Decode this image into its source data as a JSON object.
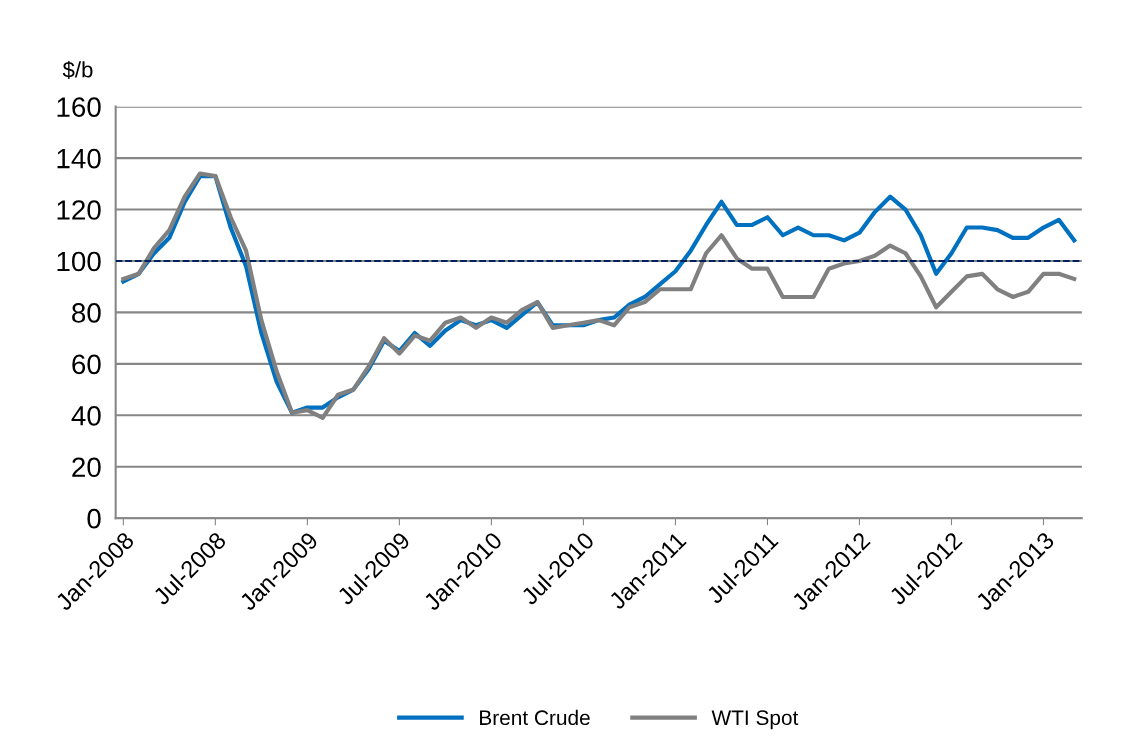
{
  "chart_data": {
    "type": "line",
    "ylabel": "$/b",
    "categories": [
      "Jan-2008",
      null,
      null,
      null,
      null,
      null,
      "Jul-2008",
      null,
      null,
      null,
      null,
      null,
      "Jan-2009",
      null,
      null,
      null,
      null,
      null,
      "Jul-2009",
      null,
      null,
      null,
      null,
      null,
      "Jan-2010",
      null,
      null,
      null,
      null,
      null,
      "Jul-2010",
      null,
      null,
      null,
      null,
      null,
      "Jan-2011",
      null,
      null,
      null,
      null,
      null,
      "Jul-2011",
      null,
      null,
      null,
      null,
      null,
      "Jan-2012",
      null,
      null,
      null,
      null,
      null,
      "Jul-2012",
      null,
      null,
      null,
      null,
      null,
      "Jan-2013",
      null,
      null
    ],
    "series": [
      {
        "name": "Brent Crude",
        "color": "#0070c0",
        "values": [
          92,
          95,
          103,
          109,
          123,
          133,
          133,
          113,
          98,
          72,
          53,
          41,
          43,
          43,
          47,
          50,
          58,
          69,
          65,
          72,
          67,
          73,
          77,
          75,
          77,
          74,
          79,
          84,
          75,
          75,
          75,
          77,
          78,
          83,
          86,
          91,
          96,
          104,
          114,
          123,
          114,
          114,
          117,
          110,
          113,
          110,
          110,
          108,
          111,
          119,
          125,
          120,
          110,
          95,
          103,
          113,
          113,
          112,
          109,
          109,
          113,
          116,
          108
        ]
      },
      {
        "name": "WTI Spot",
        "color": "#808080",
        "values": [
          93,
          95,
          105,
          112,
          125,
          134,
          133,
          117,
          104,
          77,
          57,
          41,
          42,
          39,
          48,
          50,
          59,
          70,
          64,
          71,
          69,
          76,
          78,
          74,
          78,
          76,
          81,
          84,
          74,
          75,
          76,
          77,
          75,
          82,
          84,
          89,
          89,
          89,
          103,
          110,
          101,
          97,
          97,
          86,
          86,
          86,
          97,
          99,
          100,
          102,
          106,
          103,
          94,
          82,
          88,
          94,
          95,
          89,
          86,
          88,
          95,
          95,
          93
        ]
      }
    ],
    "ylim": [
      0,
      160
    ],
    "yticks": [
      0,
      20,
      40,
      60,
      80,
      100,
      120,
      140,
      160
    ],
    "grid": "y",
    "legend": "bottom",
    "line_style": "solid",
    "marker": "none",
    "ref_lines": [
      {
        "axis": "y",
        "value": 100,
        "color": "#002060",
        "line_style": "dashed"
      }
    ]
  }
}
